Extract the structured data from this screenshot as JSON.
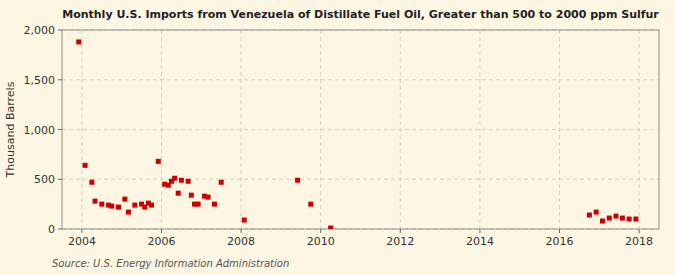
{
  "chart_data": {
    "type": "scatter",
    "title": "Monthly U.S. Imports from Venezuela of Distillate Fuel Oil, Greater than 500 to 2000 ppm Sulfur",
    "y_label": "Thousand Barrels",
    "annotations": [
      "Source: U.S. Energy Information Administration"
    ],
    "color": "#cc0000",
    "marker": "square",
    "grid": true,
    "xlim": [
      2003.5,
      2018.5
    ],
    "ylim": [
      0,
      2000
    ],
    "xticks": [
      2004,
      2006,
      2008,
      2010,
      2012,
      2014,
      2016,
      2018
    ],
    "yticks": [
      0,
      500,
      {
        "value": 1000,
        "label": "1,000"
      },
      {
        "value": 1500,
        "label": "1,500"
      },
      {
        "value": 2000,
        "label": "2,000"
      }
    ],
    "x": [
      2003.92,
      2004.08,
      2004.25,
      2004.33,
      2004.5,
      2004.67,
      2004.75,
      2004.92,
      2005.08,
      2005.17,
      2005.33,
      2005.5,
      2005.58,
      2005.67,
      2005.75,
      2005.92,
      2006.08,
      2006.17,
      2006.25,
      2006.33,
      2006.42,
      2006.5,
      2006.67,
      2006.75,
      2006.83,
      2006.92,
      2007.08,
      2007.17,
      2007.33,
      2007.5,
      2008.08,
      2009.42,
      2009.75,
      2010.25,
      2016.75,
      2016.92,
      2017.08,
      2017.25,
      2017.42,
      2017.58,
      2017.75,
      2017.92
    ],
    "values": [
      1880,
      640,
      470,
      280,
      250,
      240,
      230,
      220,
      300,
      170,
      240,
      250,
      220,
      260,
      240,
      680,
      450,
      440,
      480,
      510,
      360,
      490,
      480,
      340,
      250,
      250,
      330,
      320,
      250,
      470,
      90,
      490,
      250,
      10,
      140,
      170,
      80,
      110,
      130,
      110,
      100,
      100
    ]
  }
}
